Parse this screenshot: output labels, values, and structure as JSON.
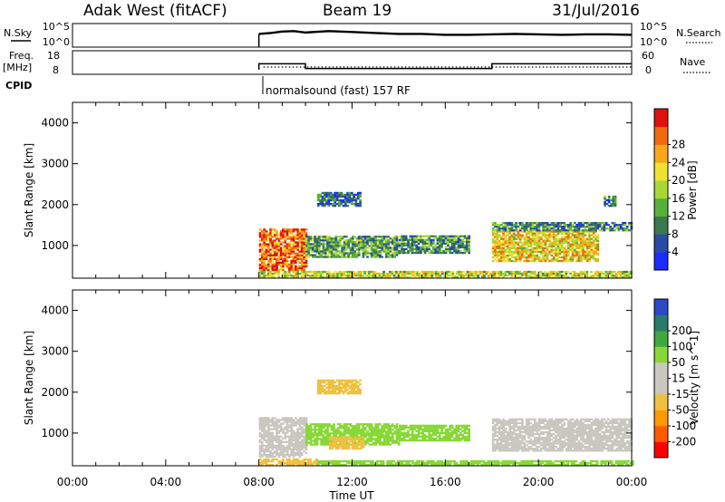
{
  "header": {
    "station": "Adak West (fitACF)",
    "beam": "Beam 19",
    "date": "31/Jul/2016"
  },
  "colors": {
    "power_scale": [
      "#1a2cff",
      "#2a4aa8",
      "#3a7a50",
      "#58b038",
      "#a8d838",
      "#f0e030",
      "#f8a818",
      "#f06a10",
      "#e01010"
    ],
    "velocity_scale": [
      "#ff0000",
      "#ff5a00",
      "#ff9a00",
      "#f0c040",
      "#c8c8c0",
      "#c8c8c0",
      "#88d838",
      "#40a840",
      "#2a7a6a",
      "#2a48c8"
    ]
  },
  "chart_data": [
    {
      "type": "line",
      "name": "noise-panel",
      "left_labels": [
        "N.Sky"
      ],
      "right_labels": [
        "N.Search"
      ],
      "ytick_labels": [
        "10^5",
        "10^0"
      ],
      "right_tick_labels": [
        "10^5",
        "10^0"
      ],
      "x": [
        8.0,
        8.5,
        9.0,
        9.5,
        10.0,
        11.0,
        12.0,
        13.0,
        14.0,
        15.0,
        16.0,
        17.0,
        18.0,
        19.0,
        20.0,
        21.0,
        22.0,
        23.0,
        24.0
      ],
      "series": [
        {
          "values": [
            2.8,
            3.0,
            3.3,
            3.4,
            3.1,
            3.4,
            3.2,
            3.0,
            2.8,
            2.8,
            2.6,
            2.6,
            2.7,
            2.8,
            2.7,
            2.6,
            2.7,
            2.7,
            2.6
          ]
        }
      ]
    },
    {
      "type": "line",
      "name": "frequency-panel",
      "left_labels": [
        "Freq.",
        "[MHz]"
      ],
      "right_labels": [
        "Nave"
      ],
      "ytick_labels": [
        "18",
        "8"
      ],
      "right_tick_labels": [
        "60",
        "0"
      ],
      "x": [
        8.0,
        8.0,
        10.0,
        10.0,
        18.0,
        18.0,
        24.0
      ],
      "series": [
        {
          "values": [
            11.5,
            14.0,
            14.0,
            12.0,
            12.0,
            14.0,
            14.0
          ]
        }
      ]
    },
    {
      "type": "table",
      "name": "cpid-row",
      "label": "CPID",
      "entries": [
        {
          "start": 8.0,
          "text": "normalsound (fast) 157 RF"
        }
      ]
    },
    {
      "type": "heatmap",
      "name": "power",
      "ylabel": "Slant Range [km]",
      "ylim": [
        200,
        4500
      ],
      "yticks": [
        1000,
        2000,
        3000,
        4000
      ],
      "xlim": [
        0,
        24
      ],
      "colorbar": {
        "label": "Power [dB]",
        "ticks": [
          4,
          8,
          12,
          16,
          20,
          24,
          28
        ]
      },
      "regions": [
        {
          "t0": 8.0,
          "t1": 10.0,
          "r0": 380,
          "r1": 1380,
          "value": 26
        },
        {
          "t0": 10.0,
          "t1": 14.0,
          "r0": 700,
          "r1": 1200,
          "value": 11
        },
        {
          "t0": 14.0,
          "t1": 17.0,
          "r0": 800,
          "r1": 1250,
          "value": 10
        },
        {
          "t0": 18.0,
          "t1": 22.5,
          "r0": 600,
          "r1": 1350,
          "value": 20
        },
        {
          "t0": 18.0,
          "t1": 24.0,
          "r0": 1350,
          "r1": 1550,
          "value": 9
        },
        {
          "t0": 8.0,
          "t1": 24.0,
          "r0": 200,
          "r1": 380,
          "value": 17
        },
        {
          "t0": 10.5,
          "t1": 12.3,
          "r0": 1950,
          "r1": 2300,
          "value": 7
        },
        {
          "t0": 22.8,
          "t1": 23.3,
          "r0": 1950,
          "r1": 2200,
          "value": 9
        }
      ]
    },
    {
      "type": "heatmap",
      "name": "velocity",
      "ylabel": "Slant Range [km]",
      "xlabel": "Time UT",
      "ylim": [
        200,
        4500
      ],
      "yticks": [
        1000,
        2000,
        3000,
        4000
      ],
      "xlim": [
        0,
        24
      ],
      "xtick_labels": [
        "00:00",
        "04:00",
        "08:00",
        "12:00",
        "16:00",
        "20:00",
        "00:00"
      ],
      "colorbar": {
        "label": "Velocity [m s^-1]",
        "ticks": [
          -200,
          -100,
          -50,
          -15,
          15,
          50,
          100,
          200
        ]
      },
      "regions": [
        {
          "t0": 8.0,
          "t1": 10.0,
          "r0": 400,
          "r1": 1350,
          "value": 0
        },
        {
          "t0": 10.0,
          "t1": 14.0,
          "r0": 700,
          "r1": 1200,
          "value": 35
        },
        {
          "t0": 11.0,
          "t1": 12.5,
          "r0": 600,
          "r1": 900,
          "value": -40
        },
        {
          "t0": 14.0,
          "t1": 17.0,
          "r0": 800,
          "r1": 1200,
          "value": 30
        },
        {
          "t0": 18.0,
          "t1": 24.0,
          "r0": 550,
          "r1": 1350,
          "value": 0
        },
        {
          "t0": 8.0,
          "t1": 10.5,
          "r0": 200,
          "r1": 380,
          "value": -40
        },
        {
          "t0": 10.5,
          "t1": 24.0,
          "r0": 200,
          "r1": 330,
          "value": 30
        },
        {
          "t0": 10.5,
          "t1": 12.3,
          "r0": 1950,
          "r1": 2300,
          "value": -30
        }
      ]
    }
  ]
}
